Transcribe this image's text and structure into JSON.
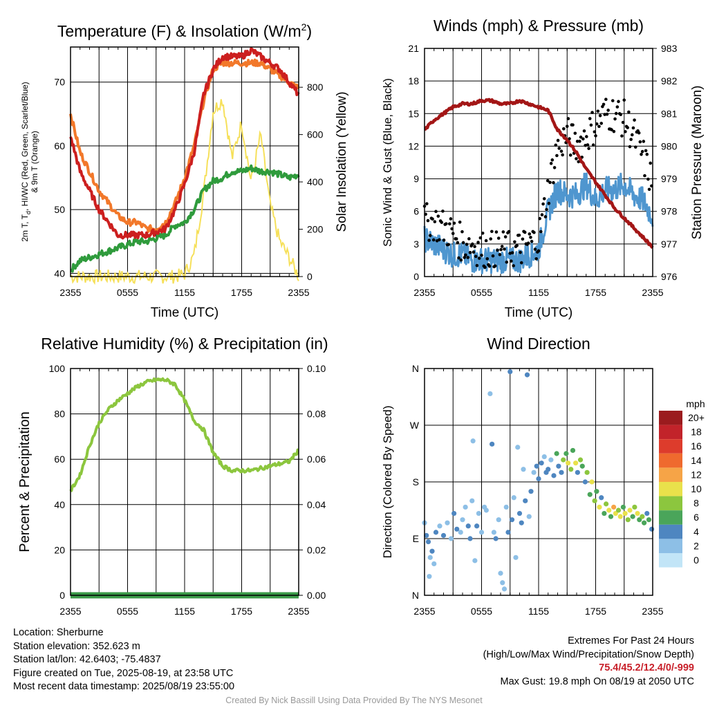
{
  "colors": {
    "t2m": "#cc1f1f",
    "td": "#cc1f1f",
    "t9m": "#f2782a",
    "hiwc": "#2f9b3c",
    "solar": "#f6e05a",
    "sonic": "#4f96cf",
    "gust": "#000000",
    "pressure": "#a31616",
    "rh": "#8cc63e",
    "precip": "#3b9a48"
  },
  "chart_data": [
    {
      "id": "temperature",
      "type": "line",
      "title": "Temperature (F) & Insolation (W/m²)",
      "xlabel": "Time (UTC)",
      "ylabel_left": [
        "2m T, T",
        "d",
        ", HI/WC (Red, Green, Scarlet/Blue)",
        "& 9m T (Orange)"
      ],
      "ylabel_right": "Solar Insolation (Yellow)",
      "x_ticks": [
        "2355",
        "0555",
        "1155",
        "1755",
        "2355"
      ],
      "y_ticks_left": [
        "40",
        "50",
        "60",
        "70"
      ],
      "y_ticks_right": [
        "0",
        "200",
        "400",
        "600",
        "800"
      ],
      "ylim_left": [
        39.5,
        75.5
      ],
      "ylim_right": [
        0,
        970
      ],
      "grid": true,
      "hours": [
        0,
        1,
        2,
        3,
        4,
        5,
        6,
        7,
        8,
        9,
        10,
        11,
        12,
        13,
        14,
        15,
        16,
        17,
        18,
        19,
        20,
        21,
        22,
        23,
        24
      ],
      "series": [
        {
          "key": "t9m",
          "values": [
            65,
            59,
            56,
            53,
            51,
            49,
            48,
            48,
            47,
            47,
            48,
            51,
            55,
            60,
            67,
            72,
            73,
            73,
            73,
            73,
            73,
            72,
            71,
            70,
            69
          ]
        },
        {
          "key": "t2m",
          "values": [
            61.5,
            56,
            53,
            50,
            48,
            46,
            46,
            46,
            46,
            46.5,
            47,
            50,
            54,
            59,
            68,
            72,
            74,
            74,
            74,
            75,
            74,
            73,
            72,
            70,
            68
          ]
        },
        {
          "key": "hiwc",
          "values": [
            40.5,
            42,
            42.5,
            43,
            43.5,
            44,
            44.5,
            45,
            45,
            45.5,
            46,
            47.5,
            48,
            50,
            53,
            54.5,
            55,
            56,
            56,
            56.5,
            56,
            56,
            55.5,
            55,
            55.5
          ]
        },
        {
          "key": "solar",
          "values": [
            0,
            0,
            0,
            0,
            0,
            0,
            0,
            0,
            0,
            0,
            0,
            0,
            10,
            90,
            350,
            700,
            750,
            500,
            650,
            400,
            600,
            300,
            150,
            80,
            0
          ]
        }
      ]
    },
    {
      "id": "winds",
      "type": "line",
      "title": "Winds (mph) & Pressure (mb)",
      "xlabel": "Time (UTC)",
      "ylabel_left": "Sonic Wind & Gust (Blue, Black)",
      "ylabel_right": "Station Pressure (Maroon)",
      "x_ticks": [
        "2355",
        "0555",
        "1155",
        "1755",
        "2355"
      ],
      "y_ticks_left": [
        "0",
        "3",
        "6",
        "9",
        "12",
        "15",
        "18",
        "21"
      ],
      "y_ticks_right": [
        "976",
        "977",
        "978",
        "979",
        "980",
        "981",
        "982",
        "983"
      ],
      "ylim_left": [
        0,
        21
      ],
      "ylim_right": [
        976,
        983
      ],
      "grid": true,
      "hours": [
        0,
        1,
        2,
        3,
        4,
        5,
        6,
        7,
        8,
        9,
        10,
        11,
        12,
        13,
        14,
        15,
        16,
        17,
        18,
        19,
        20,
        21,
        22,
        23,
        24
      ],
      "series": [
        {
          "key": "sonic",
          "values": [
            3.5,
            3,
            2.5,
            2,
            2,
            1.5,
            1.5,
            1.5,
            1.5,
            1.5,
            1.5,
            2,
            2.5,
            6,
            8,
            7.5,
            7.5,
            8.5,
            7,
            8,
            8,
            8.5,
            7.5,
            7,
            5.5
          ]
        },
        {
          "key": "gust",
          "values": [
            5,
            5,
            4.5,
            4,
            3,
            3,
            2.5,
            2.5,
            2.5,
            2.5,
            2.5,
            3,
            3.5,
            8,
            12,
            13,
            12,
            13,
            14,
            15,
            15,
            14.5,
            13,
            11,
            8.5
          ]
        },
        {
          "key": "pressure",
          "values": [
            980.5,
            980.8,
            981,
            981.2,
            981.3,
            981.3,
            981.4,
            981.4,
            981.3,
            981.3,
            981.4,
            981.3,
            981.2,
            981.1,
            980.5,
            980.2,
            979.8,
            979.3,
            978.9,
            978.5,
            978.1,
            977.8,
            977.5,
            977.2,
            976.9
          ]
        }
      ]
    },
    {
      "id": "humidity",
      "type": "line",
      "title": "Relative Humidity (%) & Precipitation (in)",
      "ylabel_left": "Percent & Precipitation",
      "x_ticks": [
        "2355",
        "0555",
        "1155",
        "1755",
        "2355"
      ],
      "y_ticks_left": [
        "0",
        "20",
        "40",
        "60",
        "80",
        "100"
      ],
      "y_ticks_right": [
        "0.00",
        "0.02",
        "0.04",
        "0.06",
        "0.08",
        "0.10"
      ],
      "ylim_left": [
        0,
        100
      ],
      "ylim_right": [
        0,
        0.1
      ],
      "grid": true,
      "hours": [
        0,
        1,
        2,
        3,
        4,
        5,
        6,
        7,
        8,
        9,
        10,
        11,
        12,
        13,
        14,
        15,
        16,
        17,
        18,
        19,
        20,
        21,
        22,
        23,
        24
      ],
      "series": [
        {
          "key": "rh",
          "values": [
            46,
            53,
            66,
            76,
            82,
            86,
            89,
            92,
            94,
            95,
            95,
            93,
            86,
            77,
            73,
            63,
            57,
            55,
            55,
            55,
            56,
            57,
            58,
            59,
            64
          ]
        },
        {
          "key": "precip",
          "values": [
            0,
            0,
            0,
            0,
            0,
            0,
            0,
            0,
            0,
            0,
            0,
            0,
            0,
            0,
            0,
            0,
            0,
            0,
            0,
            0,
            0,
            0,
            0,
            0,
            0
          ]
        }
      ]
    },
    {
      "id": "direction",
      "type": "scatter",
      "title": "Wind Direction",
      "ylabel_left": "Direction (Colored By Speed)",
      "x_ticks": [
        "2355",
        "0555",
        "1155",
        "1755",
        "2355"
      ],
      "y_ticks_left": [
        "N",
        "E",
        "S",
        "W",
        "N"
      ],
      "ylim": [
        0,
        360
      ],
      "grid": true,
      "legend_title": "mph",
      "legend_labels": [
        "20+",
        "18",
        "16",
        "14",
        "12",
        "10",
        "8",
        "6",
        "4",
        "2",
        "0"
      ],
      "legend_colors": [
        "#9b1b1e",
        "#c2232a",
        "#dd3c2c",
        "#ef6a2e",
        "#f6a447",
        "#e9e14b",
        "#8cc63e",
        "#4aa55a",
        "#4e86c0",
        "#8dbfe6",
        "#c2e5f7"
      ],
      "points": [
        {
          "h": 0,
          "dir": 115,
          "spd": 2
        },
        {
          "h": 0.2,
          "dir": 95,
          "spd": 4
        },
        {
          "h": 0.4,
          "dir": 85,
          "spd": 3
        },
        {
          "h": 0.6,
          "dir": 60,
          "spd": 2
        },
        {
          "h": 0.8,
          "dir": 70,
          "spd": 4
        },
        {
          "h": 1,
          "dir": 50,
          "spd": 2
        },
        {
          "h": 0.5,
          "dir": 30,
          "spd": 1
        },
        {
          "h": 1.2,
          "dir": 100,
          "spd": 4
        },
        {
          "h": 1.6,
          "dir": 110,
          "spd": 2
        },
        {
          "h": 2.0,
          "dir": 95,
          "spd": 3
        },
        {
          "h": 2.4,
          "dir": 115,
          "spd": 1
        },
        {
          "h": 2.8,
          "dir": 90,
          "spd": 2
        },
        {
          "h": 3.1,
          "dir": 130,
          "spd": 3
        },
        {
          "h": 3.4,
          "dir": 105,
          "spd": 4
        },
        {
          "h": 3.8,
          "dir": 100,
          "spd": 1
        },
        {
          "h": 4.0,
          "dir": 120,
          "spd": 2
        },
        {
          "h": 4.3,
          "dir": 140,
          "spd": 2
        },
        {
          "h": 4.6,
          "dir": 110,
          "spd": 4
        },
        {
          "h": 4.8,
          "dir": 90,
          "spd": 3
        },
        {
          "h": 5.0,
          "dir": 150,
          "spd": 1
        },
        {
          "h": 5.1,
          "dir": 245,
          "spd": 2
        },
        {
          "h": 5.3,
          "dir": 55,
          "spd": 1
        },
        {
          "h": 5.5,
          "dir": 110,
          "spd": 3
        },
        {
          "h": 5.7,
          "dir": 130,
          "spd": 2
        },
        {
          "h": 6.0,
          "dir": 100,
          "spd": 2
        },
        {
          "h": 6.3,
          "dir": 140,
          "spd": 1
        },
        {
          "h": 6.5,
          "dir": 135,
          "spd": 2
        },
        {
          "h": 6.9,
          "dir": 320,
          "spd": 1
        },
        {
          "h": 7.1,
          "dir": 240,
          "spd": 3
        },
        {
          "h": 7.3,
          "dir": 100,
          "spd": 2
        },
        {
          "h": 7.5,
          "dir": 90,
          "spd": 4
        },
        {
          "h": 7.8,
          "dir": 120,
          "spd": 2
        },
        {
          "h": 8.0,
          "dir": 35,
          "spd": 2
        },
        {
          "h": 8.2,
          "dir": 20,
          "spd": 1
        },
        {
          "h": 8.4,
          "dir": 10,
          "spd": 1
        },
        {
          "h": 8.6,
          "dir": 140,
          "spd": 2
        },
        {
          "h": 8.8,
          "dir": 100,
          "spd": 3
        },
        {
          "h": 9.0,
          "dir": 355,
          "spd": 4
        },
        {
          "h": 9.2,
          "dir": 120,
          "spd": 3
        },
        {
          "h": 9.4,
          "dir": 155,
          "spd": 2
        },
        {
          "h": 9.6,
          "dir": 60,
          "spd": 2
        },
        {
          "h": 9.8,
          "dir": 235,
          "spd": 2
        },
        {
          "h": 10.0,
          "dir": 130,
          "spd": 4
        },
        {
          "h": 10.2,
          "dir": 115,
          "spd": 3
        },
        {
          "h": 10.4,
          "dir": 200,
          "spd": 2
        },
        {
          "h": 10.6,
          "dir": 150,
          "spd": 4
        },
        {
          "h": 10.8,
          "dir": 350,
          "spd": 4
        },
        {
          "h": 11.0,
          "dir": 125,
          "spd": 2
        },
        {
          "h": 11.2,
          "dir": 165,
          "spd": 3
        },
        {
          "h": 11.5,
          "dir": 195,
          "spd": 2
        },
        {
          "h": 11.8,
          "dir": 205,
          "spd": 3
        },
        {
          "h": 12.0,
          "dir": 185,
          "spd": 4
        },
        {
          "h": 12.3,
          "dir": 210,
          "spd": 3
        },
        {
          "h": 12.6,
          "dir": 220,
          "spd": 2
        },
        {
          "h": 12.8,
          "dir": 195,
          "spd": 4
        },
        {
          "h": 13.0,
          "dir": 200,
          "spd": 3
        },
        {
          "h": 13.3,
          "dir": 215,
          "spd": 2
        },
        {
          "h": 13.6,
          "dir": 190,
          "spd": 4
        },
        {
          "h": 13.9,
          "dir": 225,
          "spd": 6
        },
        {
          "h": 14.1,
          "dir": 205,
          "spd": 3
        },
        {
          "h": 14.4,
          "dir": 195,
          "spd": 4
        },
        {
          "h": 14.6,
          "dir": 215,
          "spd": 8
        },
        {
          "h": 14.9,
          "dir": 225,
          "spd": 6
        },
        {
          "h": 15.1,
          "dir": 210,
          "spd": 10
        },
        {
          "h": 15.4,
          "dir": 200,
          "spd": 8
        },
        {
          "h": 15.6,
          "dir": 230,
          "spd": 6
        },
        {
          "h": 15.9,
          "dir": 210,
          "spd": 10
        },
        {
          "h": 16.1,
          "dir": 195,
          "spd": 4
        },
        {
          "h": 16.4,
          "dir": 215,
          "spd": 8
        },
        {
          "h": 16.6,
          "dir": 205,
          "spd": 6
        },
        {
          "h": 16.9,
          "dir": 180,
          "spd": 4
        },
        {
          "h": 17.1,
          "dir": 195,
          "spd": 8
        },
        {
          "h": 17.4,
          "dir": 160,
          "spd": 6
        },
        {
          "h": 17.6,
          "dir": 180,
          "spd": 10
        },
        {
          "h": 17.9,
          "dir": 150,
          "spd": 8
        },
        {
          "h": 18.1,
          "dir": 165,
          "spd": 6
        },
        {
          "h": 18.4,
          "dir": 140,
          "spd": 10
        },
        {
          "h": 18.6,
          "dir": 155,
          "spd": 4
        },
        {
          "h": 18.9,
          "dir": 130,
          "spd": 6
        },
        {
          "h": 19.1,
          "dir": 145,
          "spd": 8
        },
        {
          "h": 19.4,
          "dir": 135,
          "spd": 10
        },
        {
          "h": 19.6,
          "dir": 125,
          "spd": 6
        },
        {
          "h": 19.9,
          "dir": 140,
          "spd": 12
        },
        {
          "h": 20.1,
          "dir": 130,
          "spd": 10
        },
        {
          "h": 20.4,
          "dir": 135,
          "spd": 8
        },
        {
          "h": 20.6,
          "dir": 125,
          "spd": 10
        },
        {
          "h": 20.9,
          "dir": 140,
          "spd": 6
        },
        {
          "h": 21.1,
          "dir": 130,
          "spd": 10
        },
        {
          "h": 21.4,
          "dir": 120,
          "spd": 8
        },
        {
          "h": 21.6,
          "dir": 135,
          "spd": 10
        },
        {
          "h": 21.9,
          "dir": 125,
          "spd": 6
        },
        {
          "h": 22.1,
          "dir": 140,
          "spd": 8
        },
        {
          "h": 22.4,
          "dir": 130,
          "spd": 10
        },
        {
          "h": 22.6,
          "dir": 120,
          "spd": 6
        },
        {
          "h": 22.9,
          "dir": 125,
          "spd": 8
        },
        {
          "h": 23.1,
          "dir": 115,
          "spd": 6
        },
        {
          "h": 23.4,
          "dir": 130,
          "spd": 4
        },
        {
          "h": 23.6,
          "dir": 120,
          "spd": 6
        },
        {
          "h": 23.9,
          "dir": 105,
          "spd": 4
        }
      ]
    }
  ],
  "info_left": [
    "Location: Sherburne",
    "Station elevation: 352.623 m",
    "Station lat/lon: 42.6403; -75.4837",
    "Figure created on Tue, 2025-08-19, at 23:58 UTC",
    "Most recent data timestamp: 2025/08/19 23:55:00"
  ],
  "extremes": {
    "title": "Extremes For Past 24 Hours",
    "subtitle": "(High/Low/Max Wind/Precipitation/Snow Depth)",
    "values": "75.4/45.2/12.4/0/-999",
    "gust": "Max Gust: 19.8 mph On 08/19 at 2050 UTC"
  },
  "credit": "Created By Nick Bassill Using Data Provided By The NYS Mesonet"
}
